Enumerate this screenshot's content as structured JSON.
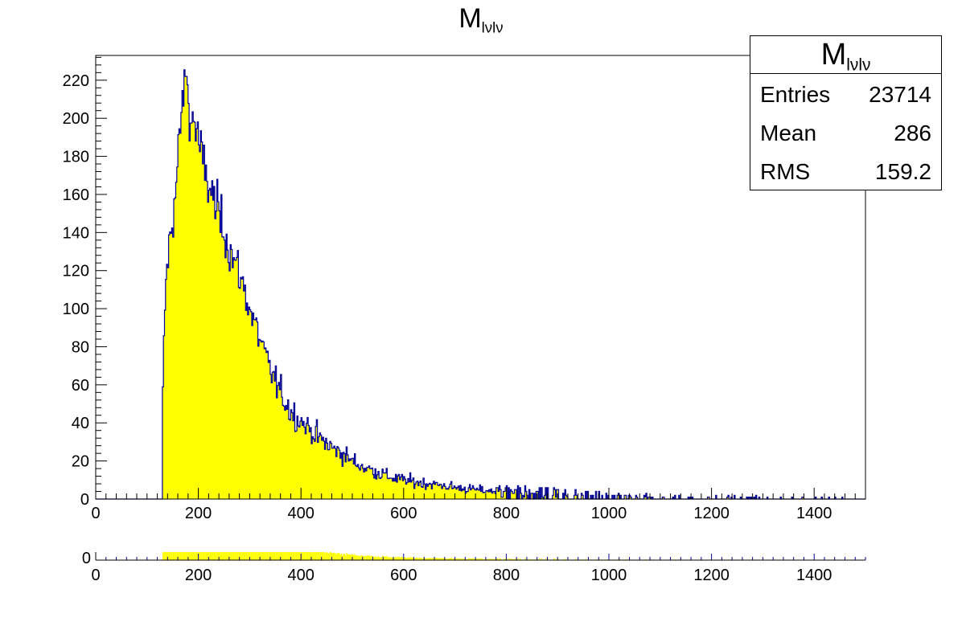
{
  "chart_data": [
    {
      "type": "bar",
      "title_main": "M",
      "title_sub": "lνlν",
      "xlabel": "",
      "ylabel": "",
      "xlim": [
        0,
        1500
      ],
      "ylim": [
        0,
        233
      ],
      "xticks": [
        0,
        200,
        400,
        600,
        800,
        1000,
        1200,
        1400
      ],
      "yticks": [
        0,
        20,
        40,
        60,
        80,
        100,
        120,
        140,
        160,
        180,
        200,
        220
      ],
      "fill_color": "#ffff00",
      "line_color": "#000099",
      "bin_width": 2,
      "peak_x": 175,
      "peak_y": 222,
      "threshold_x": 130,
      "bins": [
        [
          130,
          40
        ],
        [
          134,
          95
        ],
        [
          138,
          118
        ],
        [
          142,
          130
        ],
        [
          146,
          140
        ],
        [
          150,
          148
        ],
        [
          154,
          157
        ],
        [
          158,
          168
        ],
        [
          162,
          185
        ],
        [
          166,
          200
        ],
        [
          170,
          210
        ],
        [
          174,
          215
        ],
        [
          178,
          212
        ],
        [
          182,
          205
        ],
        [
          186,
          198
        ],
        [
          190,
          200
        ],
        [
          196,
          195
        ],
        [
          202,
          185
        ],
        [
          210,
          175
        ],
        [
          220,
          165
        ],
        [
          230,
          157
        ],
        [
          240,
          150
        ],
        [
          250,
          142
        ],
        [
          260,
          132
        ],
        [
          270,
          125
        ],
        [
          280,
          118
        ],
        [
          290,
          110
        ],
        [
          300,
          100
        ],
        [
          310,
          92
        ],
        [
          320,
          84
        ],
        [
          330,
          75
        ],
        [
          340,
          68
        ],
        [
          350,
          62
        ],
        [
          360,
          56
        ],
        [
          370,
          51
        ],
        [
          380,
          46
        ],
        [
          400,
          41
        ],
        [
          420,
          36
        ],
        [
          440,
          31
        ],
        [
          460,
          27
        ],
        [
          480,
          24
        ],
        [
          500,
          20
        ],
        [
          520,
          17
        ],
        [
          540,
          15
        ],
        [
          560,
          13
        ],
        [
          580,
          11
        ],
        [
          600,
          10
        ],
        [
          620,
          9
        ],
        [
          650,
          8
        ],
        [
          680,
          7
        ],
        [
          700,
          6
        ],
        [
          740,
          5
        ],
        [
          780,
          4
        ],
        [
          820,
          3.5
        ],
        [
          870,
          3
        ],
        [
          920,
          2.5
        ],
        [
          980,
          2
        ],
        [
          1050,
          1.6
        ],
        [
          1120,
          1.2
        ],
        [
          1200,
          1
        ],
        [
          1300,
          0.8
        ],
        [
          1400,
          0.6
        ],
        [
          1500,
          0.5
        ]
      ]
    },
    {
      "type": "bar",
      "xlim": [
        0,
        1500
      ],
      "xticks": [
        0,
        200,
        400,
        600,
        800,
        1000,
        1200,
        1400
      ],
      "yticks": [
        0
      ]
    }
  ],
  "stats": {
    "title_main": "M",
    "title_sub": "lνlν",
    "rows": [
      {
        "label": "Entries",
        "value": "23714"
      },
      {
        "label": "Mean",
        "value": "286"
      },
      {
        "label": "RMS",
        "value": "159.2"
      }
    ]
  }
}
